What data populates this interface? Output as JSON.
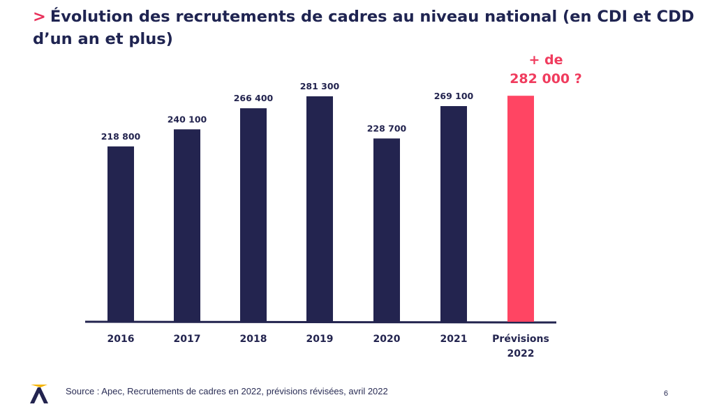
{
  "slide": {
    "title_marker": ">",
    "title": "Évolution des recrutements de cadres au niveau national (en CDI et CDD d’un an et plus)",
    "source": "Source : Apec, Recrutements de cadres en 2022, prévisions révisées, avril 2022",
    "page_number": "6",
    "logo_icon": "apec-logo-icon"
  },
  "chart_data": {
    "type": "bar",
    "title": "",
    "xlabel": "",
    "ylabel": "",
    "categories": [
      "2016",
      "2017",
      "2018",
      "2019",
      "2020",
      "2021",
      "Prévisions 2022"
    ],
    "category_lines": [
      [
        "2016"
      ],
      [
        "2017"
      ],
      [
        "2018"
      ],
      [
        "2019"
      ],
      [
        "2020"
      ],
      [
        "2021"
      ],
      [
        "Prévisions",
        "2022"
      ]
    ],
    "values": [
      218800,
      240100,
      266400,
      281300,
      228700,
      269100,
      282000
    ],
    "data_labels": [
      "218 800",
      "240 100",
      "266 400",
      "281 300",
      "228 700",
      "269 100",
      ""
    ],
    "forecast_annotation": [
      "+ de",
      "282 000 ?"
    ],
    "grid": false,
    "legend": "none",
    "colors": {
      "actual": "#23244f",
      "forecast": "#ff4563",
      "axis": "#23244f",
      "annotation": "#f03c5e"
    }
  }
}
